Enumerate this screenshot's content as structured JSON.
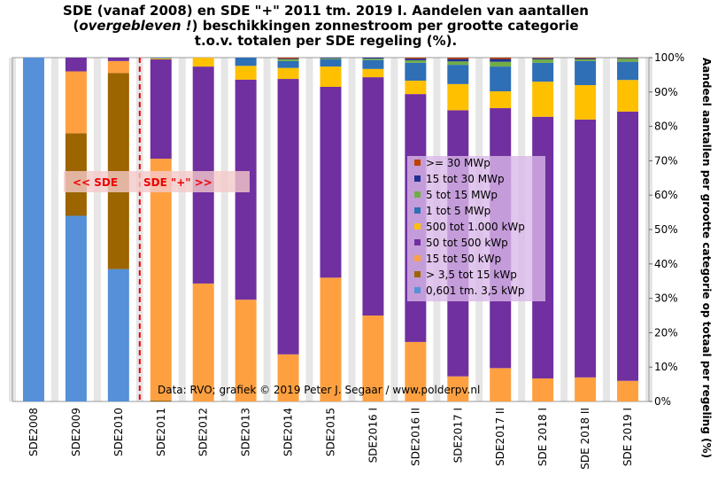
{
  "chart_data": {
    "type": "stacked_bar",
    "title": {
      "line1": "SDE (vanaf 2008) en SDE \"+\" 2011 tm. 2019 I. Aandelen van aantallen",
      "line2": {
        "pre": "(",
        "italic": "overgebleven !",
        "post": ") beschikkingen  zonnestroom per grootte categorie"
      },
      "line3": "t.o.v. totalen per SDE regeling (%)."
    },
    "y_axis_label": "Aandeel aantallen per grootte categorie op totaal per regeling (%)",
    "annotations": {
      "left": "<<  SDE",
      "right": "SDE \"+\"  >>",
      "source": "Data: RVO;  grafiek  © 2019 Peter J. Segaar / www.polderpv.nl"
    },
    "categories": [
      "SDE2008",
      "SDE2009",
      "SDE2010",
      "SDE2011",
      "SDE2012",
      "SDE2013",
      "SDE2014",
      "SDE2015",
      "SDE2016 I",
      "SDE2016 II",
      "SDE2017 I",
      "SDE2017 II",
      "SDE 2018 I",
      "SDE 2018 II",
      "SDE 2019 I"
    ],
    "series": [
      {
        "name": "0,601 tm. 3,5 kWp",
        "color": "#5590d8",
        "values": [
          100,
          54,
          38.5,
          0,
          0,
          0,
          0,
          0,
          0,
          0,
          0,
          0,
          0,
          0,
          0
        ]
      },
      {
        "name": "> 3,5 tot 15 kWp",
        "color": "#9c6500",
        "values": [
          0,
          24,
          57,
          0.3,
          0,
          0,
          0,
          0,
          0,
          0,
          0,
          0,
          0,
          0,
          0
        ]
      },
      {
        "name": "15 tot 50 kWp",
        "color": "#ffa040",
        "values": [
          0,
          18,
          3.5,
          70.3,
          34.3,
          29.6,
          13.7,
          36,
          25,
          17.3,
          7.3,
          9.7,
          6.7,
          7,
          6
        ]
      },
      {
        "name": "50 tot 500 kWp",
        "color": "#7030a0",
        "values": [
          0,
          4,
          1,
          28.9,
          63.1,
          64,
          80.1,
          55.5,
          69.3,
          72.1,
          77.4,
          75.6,
          76.1,
          75,
          78.3
        ]
      },
      {
        "name": "500 tot 1.000 kWp",
        "color": "#ffc000",
        "values": [
          0,
          0,
          0,
          0.3,
          2.6,
          4,
          3.2,
          5.9,
          2.4,
          3.9,
          7.6,
          4.9,
          10.2,
          10,
          9.2
        ]
      },
      {
        "name": "1 tot 5 MWp",
        "color": "#2e6fb6",
        "values": [
          0,
          0,
          0,
          0.2,
          0,
          2.4,
          2,
          2.1,
          2.6,
          5.2,
          5.6,
          7.2,
          5.5,
          7,
          5.3
        ]
      },
      {
        "name": "5 tot 15 MWp",
        "color": "#70ad47",
        "values": [
          0,
          0,
          0,
          0,
          0,
          0,
          0.5,
          0.3,
          0.4,
          0.7,
          1,
          1.4,
          1,
          0.5,
          0.9
        ]
      },
      {
        "name": "15 tot 30 MWp",
        "color": "#203090",
        "values": [
          0,
          0,
          0,
          0,
          0,
          0,
          0.2,
          0.2,
          0.3,
          0.5,
          0.7,
          0.8,
          0.3,
          0.3,
          0.2
        ]
      },
      {
        "name": ">= 30 MWp",
        "color": "#c04000",
        "values": [
          0,
          0,
          0,
          0,
          0,
          0,
          0.3,
          0,
          0,
          0.3,
          0.4,
          0.4,
          0.2,
          0.2,
          0.1
        ]
      }
    ],
    "ylim": [
      0,
      100
    ],
    "yticks": [
      {
        "value": 0,
        "label": "0%"
      },
      {
        "value": 10,
        "label": "10%"
      },
      {
        "value": 20,
        "label": "20%"
      },
      {
        "value": 30,
        "label": "30%"
      },
      {
        "value": 40,
        "label": "40%"
      },
      {
        "value": 50,
        "label": "50%"
      },
      {
        "value": 60,
        "label": "60%"
      },
      {
        "value": 70,
        "label": "70%"
      },
      {
        "value": 80,
        "label": "80%"
      },
      {
        "value": 90,
        "label": "90%"
      },
      {
        "value": 100,
        "label": "100%"
      }
    ]
  }
}
